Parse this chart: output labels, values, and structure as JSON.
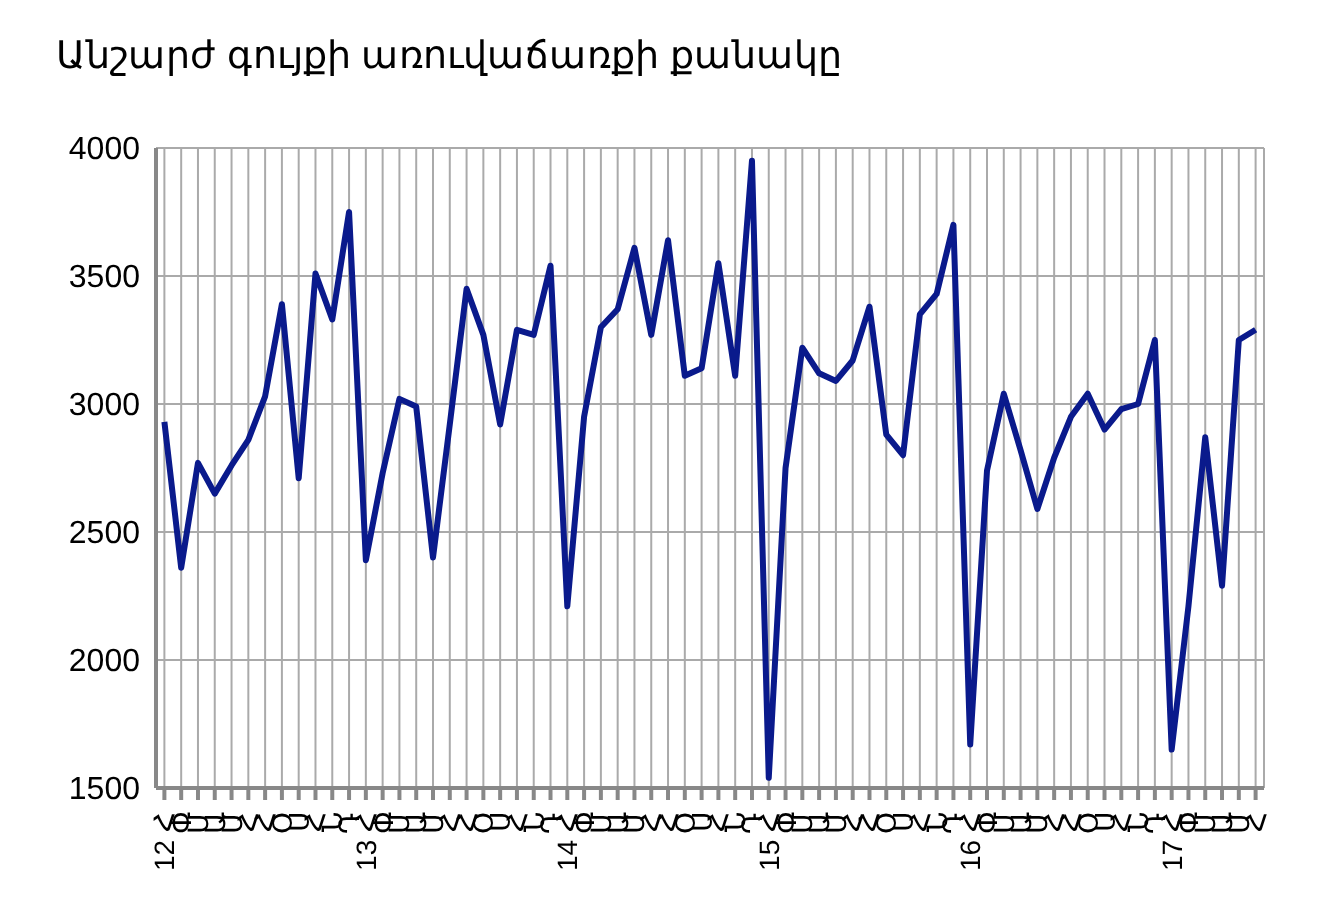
{
  "chart_data": {
    "type": "line",
    "title": "Անշարժ գույքի առուվաճառքի քանակը",
    "categories": [
      "12 Հ",
      "Փ",
      "Մ",
      "Ա",
      "Մ",
      "Հ",
      "Հ",
      "Օ",
      "Ս",
      "Հ",
      "Ն",
      "Դ",
      "13 Հ",
      "Փ",
      "Մ",
      "Ա",
      "Մ",
      "Հ",
      "Հ",
      "Օ",
      "Ս",
      "Հ",
      "Ն",
      "Դ",
      "14 Հ",
      "Փ",
      "Մ",
      "Ա",
      "Մ",
      "Հ",
      "Հ",
      "Օ",
      "Ս",
      "Հ",
      "Ն",
      "Դ",
      "15 Հ",
      "Փ",
      "Մ",
      "Ա",
      "Մ",
      "Հ",
      "Հ",
      "Օ",
      "Ս",
      "Հ",
      "Ն",
      "Դ",
      "16 Հ",
      "Փ",
      "Մ",
      "Ա",
      "Մ",
      "Հ",
      "Հ",
      "Օ",
      "Ս",
      "Հ",
      "Ն",
      "Դ",
      "17 Հ",
      "Փ",
      "Մ",
      "Ա",
      "Մ",
      "Հ"
    ],
    "series": [
      {
        "color": "#0a1a8c",
        "values": [
          2930,
          2360,
          2770,
          2650,
          2760,
          2860,
          3030,
          3390,
          2710,
          3510,
          3330,
          3750,
          2390,
          2730,
          3020,
          2990,
          2400,
          2920,
          3450,
          3270,
          2920,
          3290,
          3270,
          3540,
          2210,
          2950,
          3300,
          3370,
          3610,
          3270,
          3640,
          3110,
          3140,
          3550,
          3110,
          3950,
          1540,
          2750,
          3220,
          3120,
          3090,
          3170,
          3380,
          2880,
          2800,
          3350,
          3430,
          3700,
          1670,
          2740,
          3040,
          2820,
          2590,
          2790,
          2950,
          3040,
          2900,
          2980,
          3000,
          3250,
          1650,
          2210,
          2870,
          2290,
          3250,
          3290
        ]
      }
    ],
    "ylim": [
      1500,
      4000
    ],
    "yticks": [
      1500,
      2000,
      2500,
      3000,
      3500,
      4000
    ],
    "grid": true,
    "legend": false,
    "marker": "none",
    "line_style": "solid"
  }
}
